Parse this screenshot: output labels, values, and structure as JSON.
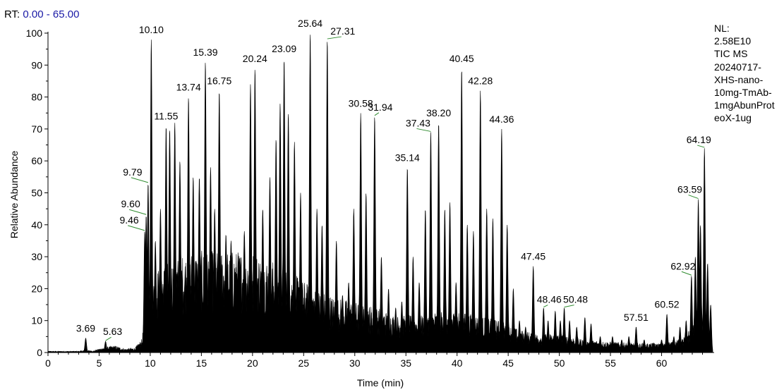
{
  "header": {
    "rt_label": "RT:",
    "rt_range": "0.00 - 65.00"
  },
  "info": {
    "lines": [
      "NL:",
      "2.58E10",
      "TIC  MS",
      "20240717-",
      "XHS-nano-",
      "10mg-TmAb-",
      "1mgAbunProt",
      "eoX-1ug"
    ]
  },
  "colors": {
    "fill": "#000000",
    "label_leader": "#2e8b2e",
    "rt_value": "#1a1aa6"
  },
  "chart_data": {
    "type": "area",
    "xlabel": "Time (min)",
    "ylabel": "Relative Abundance",
    "xlim": [
      0,
      65
    ],
    "ylim": [
      0,
      100
    ],
    "xticks": [
      "0",
      "5",
      "10",
      "15",
      "20",
      "25",
      "30",
      "35",
      "40",
      "45",
      "50",
      "55",
      "60"
    ],
    "yticks": [
      "0",
      "10",
      "20",
      "30",
      "40",
      "50",
      "60",
      "70",
      "80",
      "90",
      "100"
    ],
    "peaks": [
      {
        "rt": 3.69,
        "y": 4.5,
        "label": "3.69"
      },
      {
        "rt": 5.63,
        "y": 3.5,
        "label": "5.63"
      },
      {
        "rt": 9.46,
        "y": 38,
        "label": "9.46"
      },
      {
        "rt": 9.6,
        "y": 43,
        "label": "9.60"
      },
      {
        "rt": 9.79,
        "y": 53,
        "label": "9.79"
      },
      {
        "rt": 10.1,
        "y": 98,
        "label": "10.10"
      },
      {
        "rt": 11.55,
        "y": 71,
        "label": "11.55"
      },
      {
        "rt": 13.74,
        "y": 80,
        "label": "13.74"
      },
      {
        "rt": 15.39,
        "y": 91,
        "label": "15.39"
      },
      {
        "rt": 16.75,
        "y": 82,
        "label": "16.75"
      },
      {
        "rt": 20.24,
        "y": 89,
        "label": "20.24"
      },
      {
        "rt": 23.09,
        "y": 92,
        "label": "23.09"
      },
      {
        "rt": 25.64,
        "y": 100,
        "label": "25.64"
      },
      {
        "rt": 27.31,
        "y": 98,
        "label": "27.31"
      },
      {
        "rt": 30.58,
        "y": 75,
        "label": "30.58"
      },
      {
        "rt": 31.94,
        "y": 74,
        "label": "31.94"
      },
      {
        "rt": 35.14,
        "y": 58,
        "label": "35.14"
      },
      {
        "rt": 37.43,
        "y": 69,
        "label": "37.43"
      },
      {
        "rt": 38.2,
        "y": 72,
        "label": "38.20"
      },
      {
        "rt": 40.45,
        "y": 89,
        "label": "40.45"
      },
      {
        "rt": 42.28,
        "y": 82,
        "label": "42.28"
      },
      {
        "rt": 44.36,
        "y": 70,
        "label": "44.36"
      },
      {
        "rt": 47.45,
        "y": 27,
        "label": "47.45"
      },
      {
        "rt": 48.46,
        "y": 14,
        "label": "48.46"
      },
      {
        "rt": 50.48,
        "y": 14,
        "label": "50.48"
      },
      {
        "rt": 57.51,
        "y": 8,
        "label": "57.51"
      },
      {
        "rt": 60.52,
        "y": 12,
        "label": "60.52"
      },
      {
        "rt": 62.92,
        "y": 24,
        "label": "62.92"
      },
      {
        "rt": 63.59,
        "y": 48,
        "label": "63.59"
      },
      {
        "rt": 64.19,
        "y": 64,
        "label": "64.19"
      }
    ],
    "unlabeled_peaks": [
      {
        "rt": 10.5,
        "y": 35
      },
      {
        "rt": 11.0,
        "y": 45
      },
      {
        "rt": 11.9,
        "y": 70
      },
      {
        "rt": 12.4,
        "y": 72
      },
      {
        "rt": 12.9,
        "y": 60
      },
      {
        "rt": 14.2,
        "y": 55
      },
      {
        "rt": 14.8,
        "y": 55
      },
      {
        "rt": 15.9,
        "y": 58
      },
      {
        "rt": 16.3,
        "y": 45
      },
      {
        "rt": 17.4,
        "y": 37
      },
      {
        "rt": 17.9,
        "y": 35
      },
      {
        "rt": 18.6,
        "y": 30
      },
      {
        "rt": 19.2,
        "y": 38
      },
      {
        "rt": 19.8,
        "y": 84
      },
      {
        "rt": 21.0,
        "y": 45
      },
      {
        "rt": 21.7,
        "y": 55
      },
      {
        "rt": 22.3,
        "y": 67
      },
      {
        "rt": 22.7,
        "y": 78
      },
      {
        "rt": 23.5,
        "y": 75
      },
      {
        "rt": 24.1,
        "y": 66
      },
      {
        "rt": 24.7,
        "y": 50
      },
      {
        "rt": 26.3,
        "y": 45
      },
      {
        "rt": 26.8,
        "y": 40
      },
      {
        "rt": 28.2,
        "y": 35
      },
      {
        "rt": 28.8,
        "y": 18
      },
      {
        "rt": 29.4,
        "y": 22
      },
      {
        "rt": 29.9,
        "y": 45
      },
      {
        "rt": 31.1,
        "y": 50
      },
      {
        "rt": 32.6,
        "y": 30
      },
      {
        "rt": 33.3,
        "y": 20
      },
      {
        "rt": 34.0,
        "y": 14
      },
      {
        "rt": 34.6,
        "y": 16
      },
      {
        "rt": 35.7,
        "y": 30
      },
      {
        "rt": 36.3,
        "y": 22
      },
      {
        "rt": 36.9,
        "y": 45
      },
      {
        "rt": 38.8,
        "y": 45
      },
      {
        "rt": 39.3,
        "y": 47
      },
      {
        "rt": 39.9,
        "y": 22
      },
      {
        "rt": 41.0,
        "y": 40
      },
      {
        "rt": 41.6,
        "y": 38
      },
      {
        "rt": 42.9,
        "y": 45
      },
      {
        "rt": 43.5,
        "y": 42
      },
      {
        "rt": 44.9,
        "y": 40
      },
      {
        "rt": 45.5,
        "y": 20
      },
      {
        "rt": 46.1,
        "y": 10
      },
      {
        "rt": 46.7,
        "y": 8
      },
      {
        "rt": 48.9,
        "y": 10
      },
      {
        "rt": 49.6,
        "y": 13
      },
      {
        "rt": 50.1,
        "y": 10
      },
      {
        "rt": 51.0,
        "y": 10
      },
      {
        "rt": 51.7,
        "y": 8
      },
      {
        "rt": 52.5,
        "y": 11
      },
      {
        "rt": 53.1,
        "y": 9
      },
      {
        "rt": 54.0,
        "y": 5
      },
      {
        "rt": 55.2,
        "y": 5
      },
      {
        "rt": 56.1,
        "y": 4
      },
      {
        "rt": 56.8,
        "y": 5
      },
      {
        "rt": 58.3,
        "y": 4
      },
      {
        "rt": 59.2,
        "y": 3
      },
      {
        "rt": 60.0,
        "y": 4
      },
      {
        "rt": 61.2,
        "y": 5
      },
      {
        "rt": 61.8,
        "y": 8
      },
      {
        "rt": 62.4,
        "y": 10
      },
      {
        "rt": 63.3,
        "y": 30
      },
      {
        "rt": 63.8,
        "y": 40
      },
      {
        "rt": 64.5,
        "y": 28
      },
      {
        "rt": 64.8,
        "y": 15
      }
    ],
    "baseline": [
      [
        0,
        0.3
      ],
      [
        3.0,
        0.3
      ],
      [
        3.5,
        0.5
      ],
      [
        4.5,
        0.4
      ],
      [
        5.2,
        1.0
      ],
      [
        6.5,
        1.5
      ],
      [
        7.5,
        0.8
      ],
      [
        8.5,
        1.0
      ],
      [
        9.2,
        3.0
      ],
      [
        9.5,
        10
      ],
      [
        10.6,
        18
      ],
      [
        12,
        20
      ],
      [
        14,
        22
      ],
      [
        16,
        22
      ],
      [
        18,
        22
      ],
      [
        20,
        22
      ],
      [
        22,
        20
      ],
      [
        24,
        17
      ],
      [
        26,
        14
      ],
      [
        28,
        12
      ],
      [
        30,
        11
      ],
      [
        32,
        10
      ],
      [
        34,
        8
      ],
      [
        36,
        8
      ],
      [
        38,
        9
      ],
      [
        40,
        9
      ],
      [
        42,
        8
      ],
      [
        44,
        7
      ],
      [
        46,
        5
      ],
      [
        48,
        4
      ],
      [
        50,
        4
      ],
      [
        52,
        3
      ],
      [
        54,
        2.5
      ],
      [
        56,
        2.2
      ],
      [
        58,
        2
      ],
      [
        60,
        2
      ],
      [
        62,
        3
      ],
      [
        63,
        6
      ],
      [
        64,
        10
      ],
      [
        64.6,
        6
      ],
      [
        65,
        0.5
      ]
    ]
  }
}
